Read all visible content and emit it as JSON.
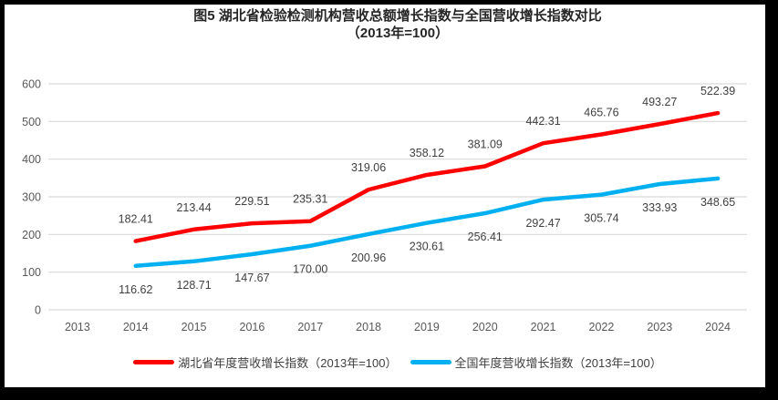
{
  "title": {
    "line1": "图5 湖北省检验检测机构营收总额增长指数与全国营收增长指数对比",
    "line2": "（2013年=100）"
  },
  "chart_data": {
    "type": "line",
    "categories": [
      "2013",
      "2014",
      "2015",
      "2016",
      "2017",
      "2018",
      "2019",
      "2020",
      "2021",
      "2022",
      "2023",
      "2024"
    ],
    "series": [
      {
        "key": "hubei",
        "name": "湖北省年度营收增长指数（2013年=100）",
        "color": "#FF0000",
        "label_position": "above",
        "values": [
          null,
          182.41,
          213.44,
          229.51,
          235.31,
          319.06,
          358.12,
          381.09,
          442.31,
          465.76,
          493.27,
          522.39
        ]
      },
      {
        "key": "national",
        "name": "全国年度营收增长指数（2013年=100）",
        "color": "#00B0F0",
        "label_position": "below",
        "values": [
          null,
          116.62,
          128.71,
          147.67,
          170.0,
          200.96,
          230.61,
          256.41,
          292.47,
          305.74,
          333.93,
          348.65
        ]
      }
    ],
    "ylim": [
      0,
      600
    ],
    "yticks": [
      0,
      100,
      200,
      300,
      400,
      500,
      600
    ],
    "grid": "horizontal",
    "legend_position": "bottom",
    "xlabel": "",
    "ylabel": ""
  },
  "style_colors": {
    "gridline": "#D9D9D9",
    "axis_text": "#595959",
    "data_label_text": "#404040",
    "frame_border": "#000000",
    "background": "#FFFFFF"
  }
}
